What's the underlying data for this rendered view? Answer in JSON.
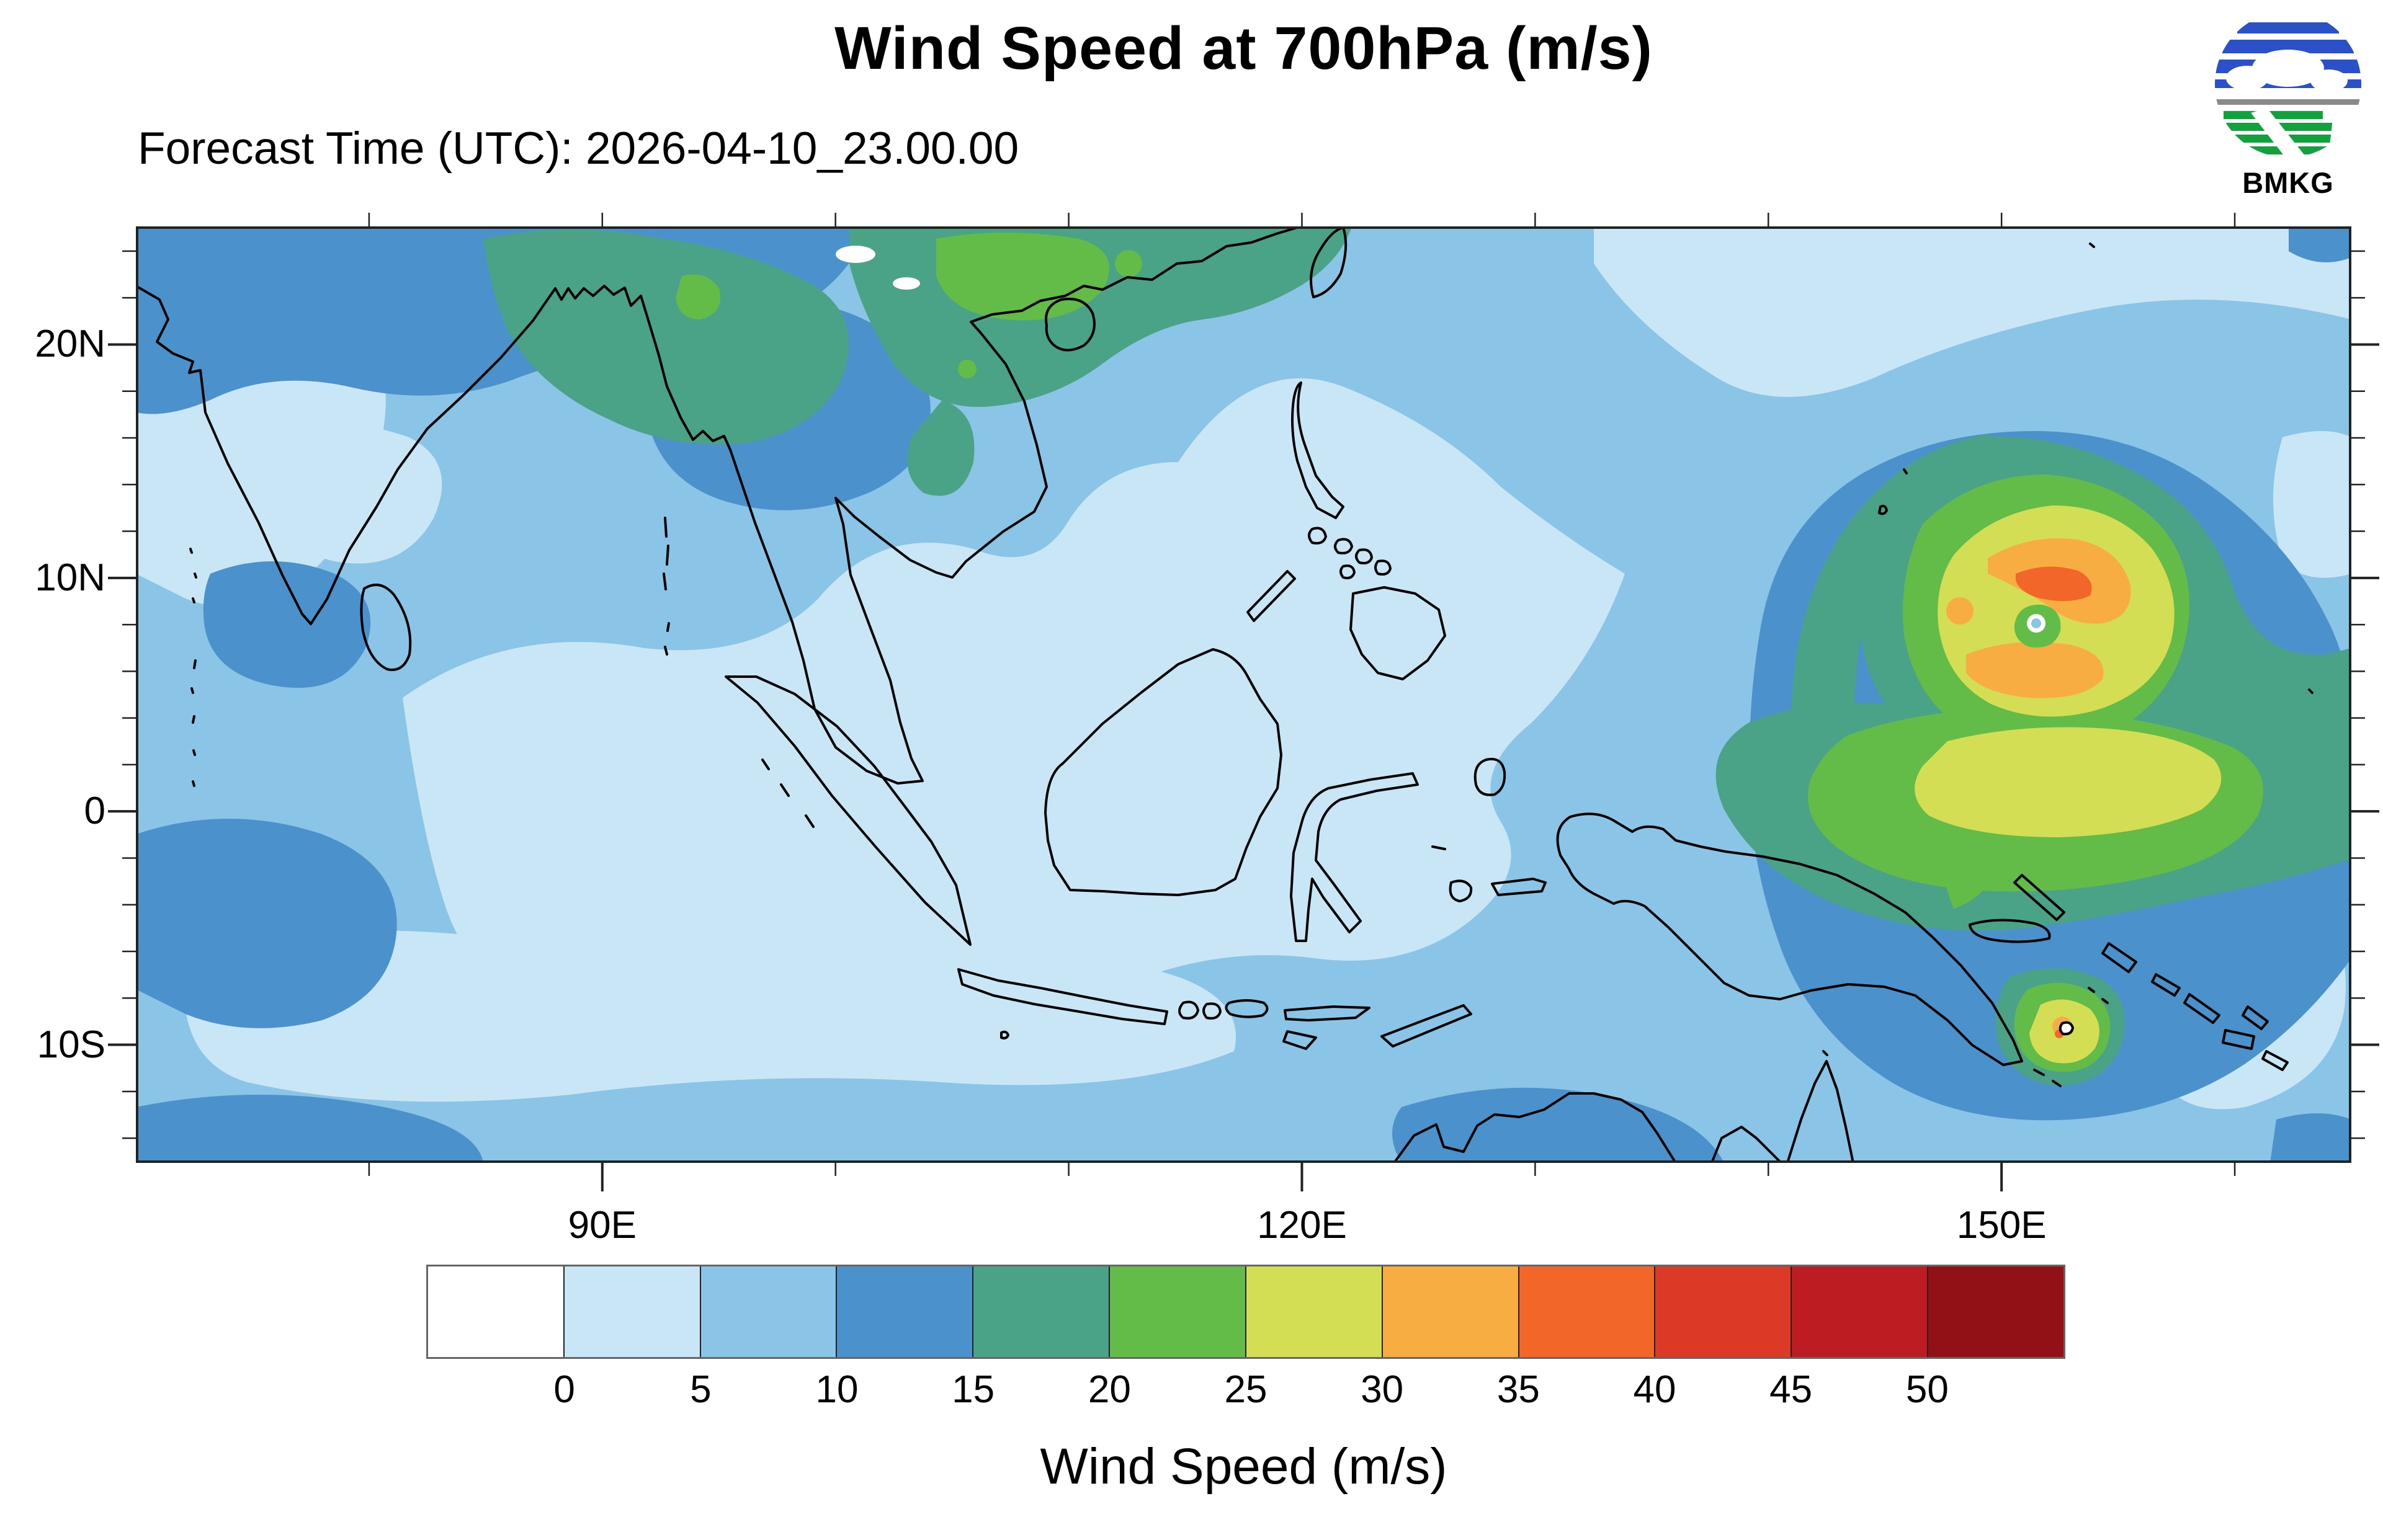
{
  "header": {
    "title": "Wind Speed at 700hPa (m/s)",
    "forecast_time": "Forecast Time (UTC): 2026-04-10_23.00.00"
  },
  "logo": {
    "label": "BMKG",
    "blue": "#2b50c8",
    "green": "#12a13c",
    "gray": "#8a8a8a"
  },
  "map": {
    "lat_labels": [
      {
        "label": "20N",
        "deg": 20
      },
      {
        "label": "10N",
        "deg": 10
      },
      {
        "label": "0",
        "deg": 0
      },
      {
        "label": "10S",
        "deg": -10
      }
    ],
    "lon_labels": [
      {
        "label": "90E",
        "deg": 90
      },
      {
        "label": "120E",
        "deg": 120
      },
      {
        "label": "150E",
        "deg": 150
      }
    ]
  },
  "colorbar": {
    "title": "Wind Speed (m/s)",
    "tick_labels": [
      "0",
      "5",
      "10",
      "15",
      "20",
      "25",
      "30",
      "35",
      "40",
      "45",
      "50"
    ],
    "levels": [
      0,
      5,
      10,
      15,
      20,
      25,
      30,
      35,
      40,
      45,
      50
    ],
    "colors": [
      "#ffffff",
      "#c8e6f5",
      "#8ac4e6",
      "#4b92cc",
      "#4aa287",
      "#64bc48",
      "#d4de55",
      "#f8ad42",
      "#f2662a",
      "#dc3927",
      "#be1c23",
      "#911116"
    ]
  }
}
